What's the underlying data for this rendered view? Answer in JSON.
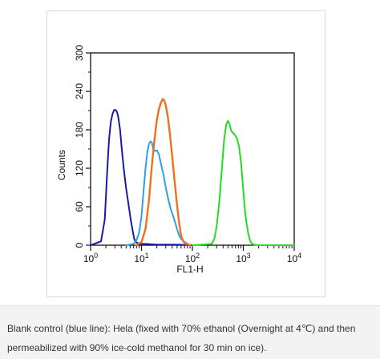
{
  "chart_data": {
    "type": "line",
    "xlabel": "FL1-H",
    "ylabel": "Counts",
    "x_scale": "log",
    "xlim": [
      1,
      10000
    ],
    "ylim": [
      0,
      300
    ],
    "x_ticks": [
      {
        "value": 1,
        "base": "10",
        "exp": "0"
      },
      {
        "value": 10,
        "base": "10",
        "exp": "1"
      },
      {
        "value": 100,
        "base": "10",
        "exp": "2"
      },
      {
        "value": 1000,
        "base": "10",
        "exp": "3"
      },
      {
        "value": 10000,
        "base": "10",
        "exp": "4"
      }
    ],
    "y_ticks": [
      "0",
      "60",
      "120",
      "180",
      "240",
      "300"
    ],
    "grid": false,
    "series": [
      {
        "color": "#1a1aa6",
        "x": [
          1.0,
          1.6,
          1.9,
          2.1,
          2.3,
          2.5,
          2.7,
          2.9,
          3.1,
          3.3,
          3.5,
          3.8,
          4.1,
          4.5,
          5.0,
          5.6,
          6.2,
          6.8,
          7.2,
          7.7,
          9.0,
          12,
          20,
          50,
          100
        ],
        "y": [
          0,
          6,
          40,
          110,
          165,
          193,
          205,
          211,
          211,
          208,
          200,
          180,
          150,
          118,
          88,
          62,
          38,
          20,
          10,
          5,
          2,
          2,
          1,
          1,
          0
        ]
      },
      {
        "color": "#2ea0e6",
        "x": [
          5,
          7,
          8,
          9,
          10,
          11,
          12,
          13,
          14,
          15,
          16,
          17,
          18,
          20,
          22,
          24,
          27,
          30,
          34,
          38,
          42,
          46,
          50,
          55,
          60,
          70,
          90
        ],
        "y": [
          0,
          2,
          8,
          20,
          45,
          85,
          120,
          145,
          158,
          162,
          160,
          150,
          147,
          148,
          142,
          128,
          110,
          90,
          70,
          55,
          45,
          35,
          25,
          15,
          10,
          5,
          0
        ]
      },
      {
        "color": "#f07020",
        "x": [
          8,
          10,
          12,
          14,
          16,
          18,
          20,
          22,
          24,
          26,
          28,
          30,
          33,
          36,
          40,
          44,
          48,
          52,
          56,
          60,
          66,
          75,
          90
        ],
        "y": [
          0,
          5,
          25,
          70,
          125,
          165,
          195,
          212,
          222,
          228,
          226,
          218,
          200,
          175,
          140,
          105,
          75,
          50,
          30,
          15,
          6,
          2,
          0
        ]
      },
      {
        "color": "#22dd22",
        "x": [
          100,
          240,
          270,
          300,
          340,
          380,
          420,
          460,
          500,
          540,
          580,
          630,
          680,
          740,
          820,
          900,
          980,
          1060,
          1150,
          1250,
          1350,
          1450,
          1600,
          2000,
          10000
        ],
        "y": [
          0,
          2,
          10,
          30,
          70,
          120,
          165,
          188,
          194,
          188,
          178,
          175,
          172,
          168,
          155,
          130,
          95,
          60,
          35,
          18,
          8,
          3,
          1,
          0,
          0
        ]
      }
    ]
  },
  "caption": {
    "text": "Blank control (blue line): Hela (fixed with 70% ethanol (Overnight at 4℃) and then permeabilized with 90% ice-cold methanol for 30 min on ice)."
  }
}
